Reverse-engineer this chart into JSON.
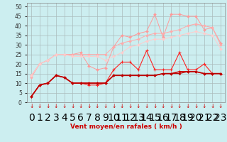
{
  "x": [
    0,
    1,
    2,
    3,
    4,
    5,
    6,
    7,
    8,
    9,
    10,
    11,
    12,
    13,
    14,
    15,
    16,
    17,
    18,
    19,
    20,
    21,
    22,
    23
  ],
  "line1": [
    14,
    20,
    22,
    25,
    25,
    25,
    26,
    19,
    17,
    18,
    29,
    35,
    34,
    36,
    37,
    46,
    34,
    46,
    46,
    45,
    45,
    38,
    39,
    31
  ],
  "line2": [
    13,
    20,
    22,
    25,
    25,
    25,
    25,
    25,
    25,
    25,
    29,
    31,
    32,
    33,
    35,
    36,
    36,
    37,
    38,
    40,
    41,
    40,
    39,
    30
  ],
  "line3": [
    14,
    20,
    22,
    25,
    25,
    24,
    24,
    24,
    24,
    22,
    24,
    26,
    29,
    30,
    32,
    33,
    33,
    34,
    35,
    36,
    37,
    36,
    35,
    28
  ],
  "line4": [
    3,
    9,
    10,
    14,
    13,
    10,
    10,
    9,
    9,
    10,
    17,
    21,
    21,
    17,
    27,
    17,
    17,
    17,
    26,
    17,
    17,
    20,
    15,
    15
  ],
  "line5": [
    3,
    9,
    10,
    14,
    13,
    10,
    10,
    10,
    10,
    10,
    14,
    14,
    14,
    14,
    14,
    14,
    15,
    15,
    16,
    16,
    16,
    15,
    15,
    15
  ],
  "line6": [
    3,
    9,
    10,
    14,
    13,
    10,
    10,
    10,
    10,
    10,
    14,
    14,
    14,
    14,
    14,
    14,
    15,
    15,
    15,
    16,
    16,
    15,
    15,
    15
  ],
  "background_color": "#cceef0",
  "grid_color": "#aabbbb",
  "line1_color": "#ff9999",
  "line2_color": "#ffaaaa",
  "line3_color": "#ffcccc",
  "line4_color": "#ff2222",
  "line5_color": "#cc0000",
  "line6_color": "#bb0000",
  "xlabel": "Vent moyen/en rafales ( km/h )",
  "ylim": [
    0,
    52
  ],
  "xlim": [
    -0.5,
    23.5
  ],
  "yticks": [
    0,
    5,
    10,
    15,
    20,
    25,
    30,
    35,
    40,
    45,
    50
  ],
  "xticks": [
    0,
    1,
    2,
    3,
    4,
    5,
    6,
    7,
    8,
    9,
    10,
    11,
    12,
    13,
    14,
    15,
    16,
    17,
    18,
    19,
    20,
    21,
    22,
    23
  ]
}
